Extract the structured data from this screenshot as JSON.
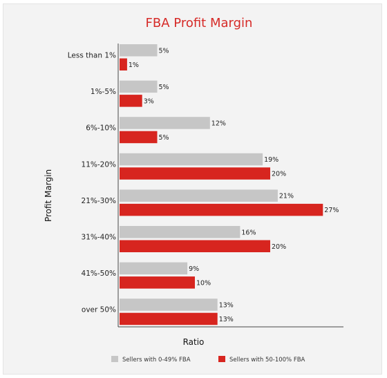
{
  "chart_data": {
    "type": "bar",
    "orientation": "horizontal",
    "title": "FBA Profit Margin",
    "xlabel": "Ratio",
    "ylabel": "Profit Margin",
    "categories": [
      "Less than 1%",
      "1%-5%",
      "6%-10%",
      "11%-20%",
      "21%-30%",
      "31%-40%",
      "41%-50%",
      "over 50%"
    ],
    "series": [
      {
        "name": "Sellers with 0-49% FBA",
        "values": [
          5,
          5,
          12,
          19,
          21,
          16,
          9,
          13
        ],
        "color": "#c6c6c6"
      },
      {
        "name": "Sellers with 50-100% FBA",
        "values": [
          1,
          3,
          5,
          20,
          27,
          20,
          10,
          13
        ],
        "color": "#d7251f"
      }
    ],
    "value_suffix": "%",
    "xlim": [
      0,
      30
    ],
    "grid": false,
    "legend": "bottom"
  }
}
